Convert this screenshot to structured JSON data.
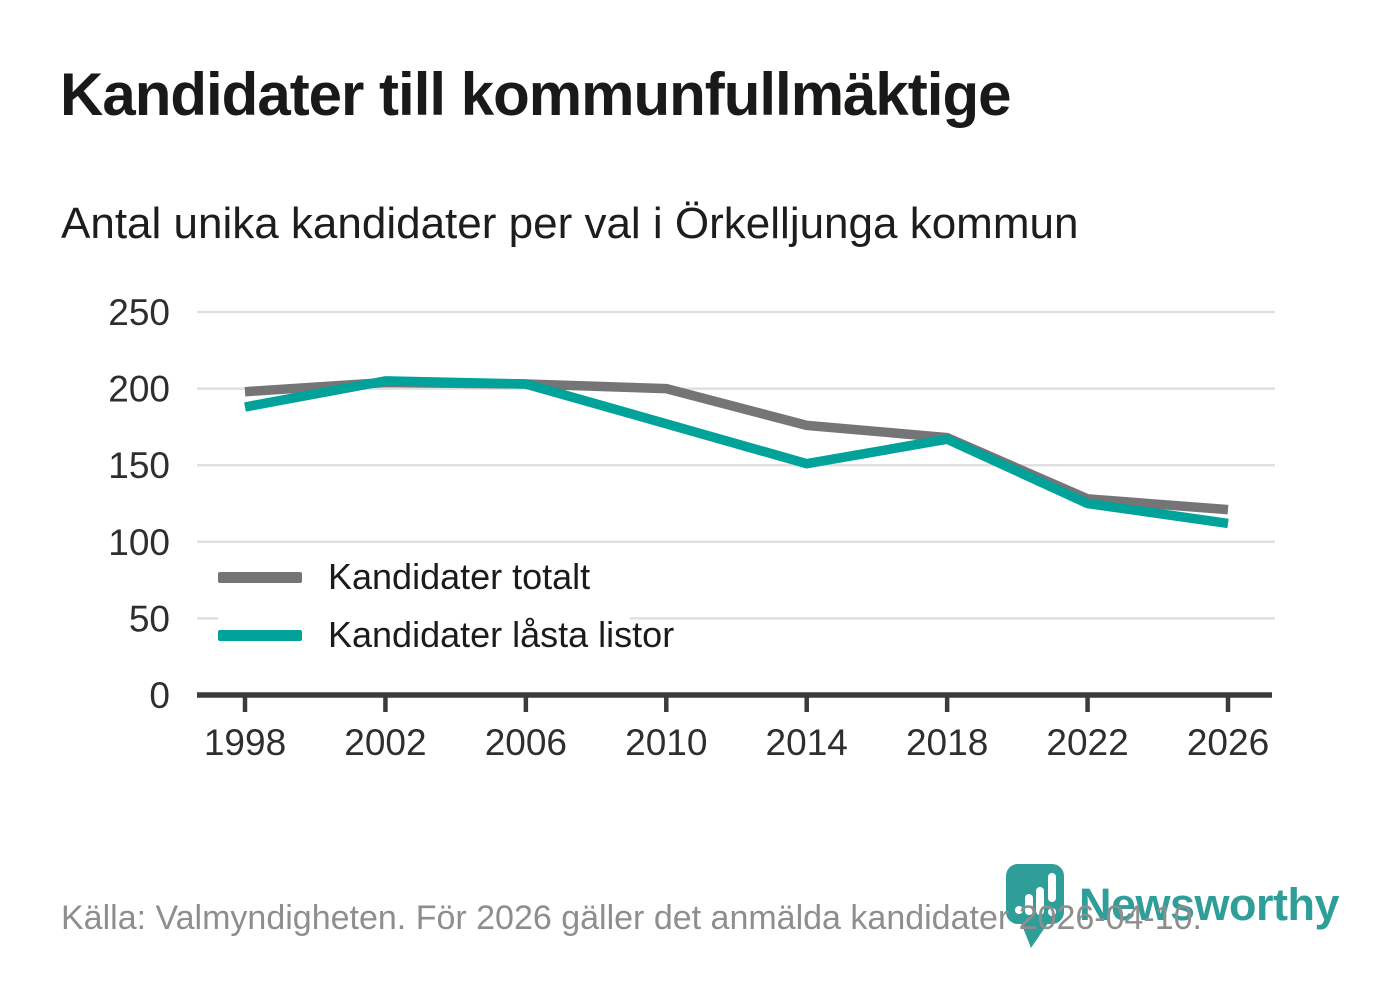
{
  "header": {
    "title": "Kandidater till kommunfullmäktige",
    "subtitle": "Antal unika kandidater per val i Örkelljunga kommun"
  },
  "chart_data": {
    "type": "line",
    "title": "Kandidater till kommunfullmäktige",
    "subtitle": "Antal unika kandidater per val i Örkelljunga kommun",
    "categories": [
      "1998",
      "2002",
      "2006",
      "2010",
      "2014",
      "2018",
      "2022",
      "2026"
    ],
    "series": [
      {
        "name": "Kandidater totalt",
        "color": "#757578",
        "values": [
          198,
          204,
          203,
          200,
          176,
          168,
          128,
          121
        ]
      },
      {
        "name": "Kandidater låsta listor",
        "color": "#00a29a",
        "values": [
          188,
          205,
          203,
          177,
          151,
          167,
          125,
          112
        ]
      }
    ],
    "xlabel": "",
    "ylabel": "",
    "ylim": [
      0,
      250
    ],
    "yticks": [
      0,
      50,
      100,
      150,
      200,
      250
    ],
    "grid": "horizontal",
    "grid_color": "#e0e0e0",
    "axis_color": "#3b3b3b",
    "legend_position": "inside-bottom-left"
  },
  "footer": {
    "source": "Källa: Valmyndigheten. För 2026 gäller det anmälda kandidater 2026-04-10.",
    "logo_text": "Newsworthy",
    "logo_color": "#2f9e99"
  }
}
